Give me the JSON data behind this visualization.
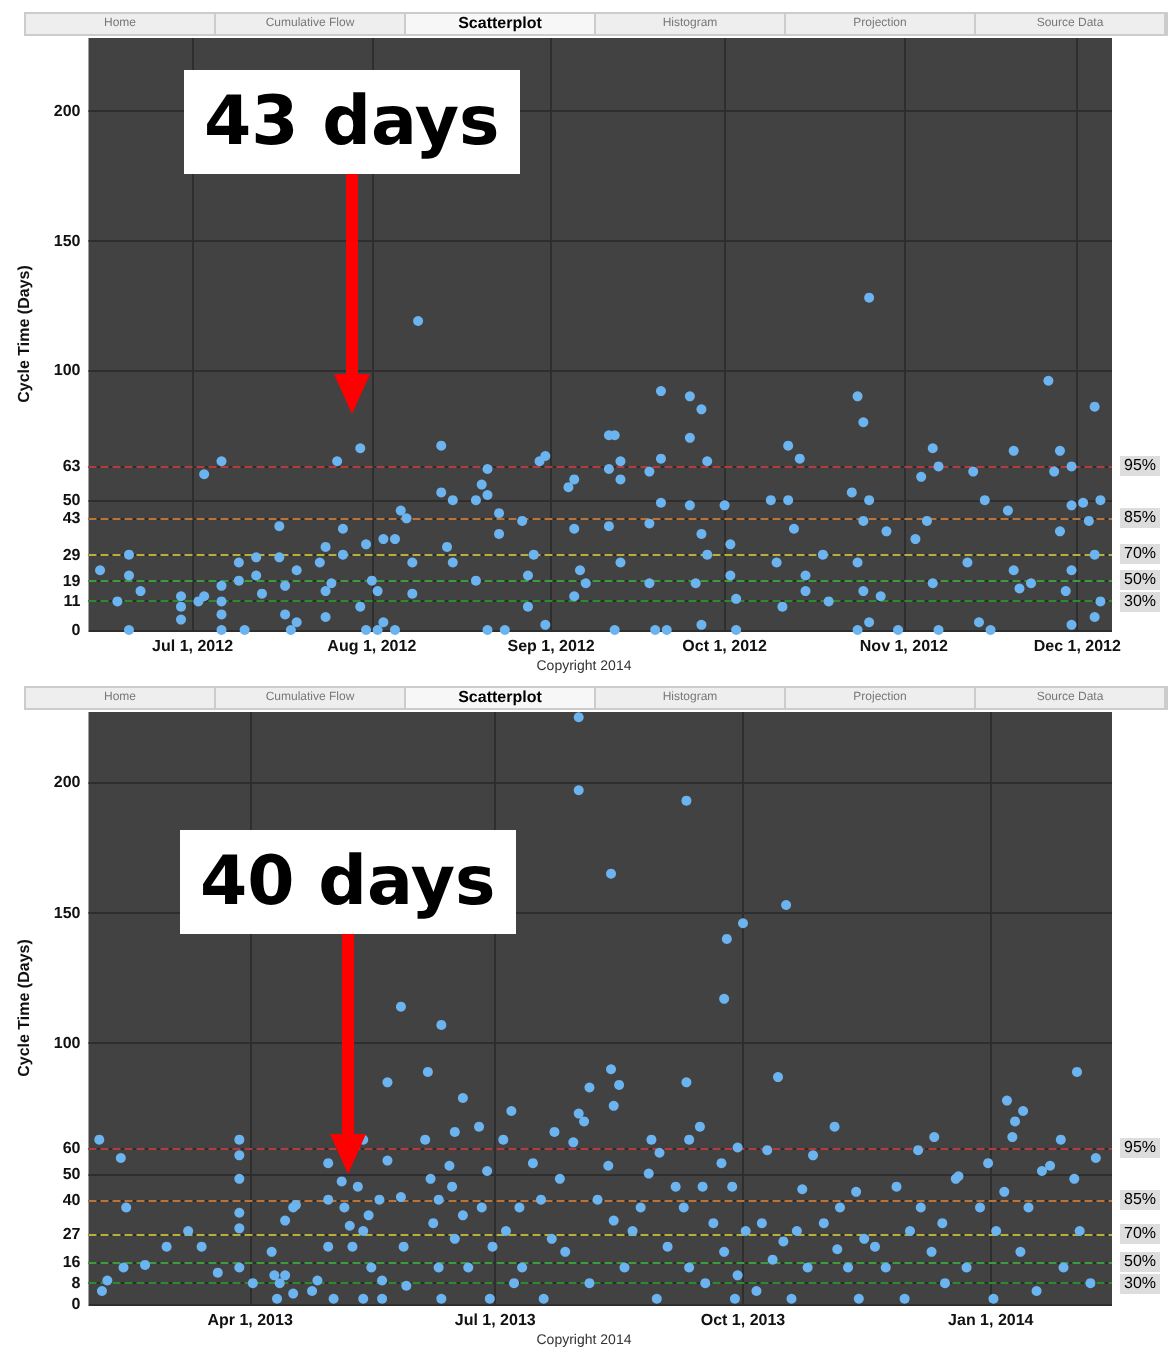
{
  "chart_data": [
    {
      "type": "scatter",
      "title": "Scatterplot",
      "ylabel": "Cycle Time (Days)",
      "annotations": [
        "Home",
        "Cumulative Flow",
        "Histogram",
        "Projection",
        "Source Data",
        "Copyright 2014",
        "43 days",
        "95%",
        "85%",
        "70%",
        "50%",
        "30%"
      ],
      "xlim": [
        "2012-06-13",
        "2012-12-07"
      ],
      "xticks": [
        {
          "value": "2012-07-01",
          "label": "Jul 1, 2012"
        },
        {
          "value": "2012-08-01",
          "label": "Aug 1, 2012"
        },
        {
          "value": "2012-09-01",
          "label": "Sep 1, 2012"
        },
        {
          "value": "2012-10-01",
          "label": "Oct 1, 2012"
        },
        {
          "value": "2012-11-01",
          "label": "Nov 1, 2012"
        },
        {
          "value": "2012-12-01",
          "label": "Dec 1, 2012"
        }
      ],
      "ylim": [
        0,
        228
      ],
      "yticks": [
        0,
        11,
        19,
        29,
        43,
        50,
        63,
        100,
        150,
        200
      ],
      "grid": true,
      "marker": "circle",
      "ref_lines": [
        {
          "axis": "y",
          "value": 63,
          "color": "#b23b3b",
          "line_style": "dashed"
        },
        {
          "axis": "y",
          "value": 43,
          "color": "#b8743a",
          "line_style": "dashed"
        },
        {
          "axis": "y",
          "value": 29,
          "color": "#b8b03a",
          "line_style": "dashed"
        },
        {
          "axis": "y",
          "value": 19,
          "color": "#3d9a3d",
          "line_style": "dashed"
        },
        {
          "axis": "y",
          "value": 11,
          "color": "#2f8a2f",
          "line_style": "dashed"
        }
      ],
      "series": [
        {
          "color": "#6cb4f0",
          "x": [
            "2012-06-15",
            "2012-06-18",
            "2012-06-20",
            "2012-06-20",
            "2012-06-20",
            "2012-06-22",
            "2012-06-29",
            "2012-06-29",
            "2012-06-29",
            "2012-07-02",
            "2012-07-03",
            "2012-07-03",
            "2012-07-06",
            "2012-07-06",
            "2012-07-06",
            "2012-07-06",
            "2012-07-06",
            "2012-07-09",
            "2012-07-09",
            "2012-07-10",
            "2012-07-12",
            "2012-07-12",
            "2012-07-13",
            "2012-07-16",
            "2012-07-16",
            "2012-07-17",
            "2012-07-17",
            "2012-07-18",
            "2012-07-19",
            "2012-07-19",
            "2012-07-23",
            "2012-07-24",
            "2012-07-24",
            "2012-07-24",
            "2012-07-25",
            "2012-07-26",
            "2012-07-27",
            "2012-07-27",
            "2012-07-30",
            "2012-07-30",
            "2012-07-31",
            "2012-07-31",
            "2012-08-01",
            "2012-08-02",
            "2012-08-02",
            "2012-08-03",
            "2012-08-03",
            "2012-08-05",
            "2012-08-05",
            "2012-08-06",
            "2012-08-07",
            "2012-08-08",
            "2012-08-08",
            "2012-08-09",
            "2012-08-13",
            "2012-08-13",
            "2012-08-14",
            "2012-08-15",
            "2012-08-15",
            "2012-08-19",
            "2012-08-19",
            "2012-08-20",
            "2012-08-21",
            "2012-08-21",
            "2012-08-21",
            "2012-08-23",
            "2012-08-23",
            "2012-08-24",
            "2012-08-27",
            "2012-08-28",
            "2012-08-28",
            "2012-08-29",
            "2012-08-30",
            "2012-08-31",
            "2012-08-31",
            "2012-09-04",
            "2012-09-05",
            "2012-09-05",
            "2012-09-05",
            "2012-09-06",
            "2012-09-07",
            "2012-09-11",
            "2012-09-12",
            "2012-09-11",
            "2012-09-13",
            "2012-09-13",
            "2012-09-11",
            "2012-09-13",
            "2012-09-12",
            "2012-09-18",
            "2012-09-18",
            "2012-09-18",
            "2012-09-19",
            "2012-09-20",
            "2012-09-20",
            "2012-09-20",
            "2012-09-21",
            "2012-09-25",
            "2012-09-25",
            "2012-09-27",
            "2012-09-28",
            "2012-09-25",
            "2012-09-26",
            "2012-09-27",
            "2012-09-27",
            "2012-09-28",
            "2012-10-01",
            "2012-10-02",
            "2012-10-02",
            "2012-10-03",
            "2012-10-03",
            "2012-10-09",
            "2012-10-10",
            "2012-10-11",
            "2012-10-12",
            "2012-10-12",
            "2012-10-13",
            "2012-10-14",
            "2012-10-15",
            "2012-10-15",
            "2012-10-18",
            "2012-10-19",
            "2012-10-23",
            "2012-10-24",
            "2012-10-24",
            "2012-10-24",
            "2012-10-25",
            "2012-10-25",
            "2012-10-26",
            "2012-10-25",
            "2012-10-26",
            "2012-10-26",
            "2012-10-28",
            "2012-10-29",
            "2012-10-31",
            "2012-11-03",
            "2012-11-04",
            "2012-11-05",
            "2012-11-06",
            "2012-11-07",
            "2012-11-06",
            "2012-11-07",
            "2012-11-12",
            "2012-11-13",
            "2012-11-14",
            "2012-11-15",
            "2012-11-16",
            "2012-11-19",
            "2012-11-20",
            "2012-11-20",
            "2012-11-21",
            "2012-11-23",
            "2012-11-26",
            "2012-11-27",
            "2012-11-28",
            "2012-11-28",
            "2012-11-30",
            "2012-11-30",
            "2012-11-30",
            "2012-11-29",
            "2012-11-30",
            "2012-12-02",
            "2012-12-03",
            "2012-12-04",
            "2012-12-05",
            "2012-12-04",
            "2012-12-04",
            "2012-12-05"
          ],
          "values": [
            23,
            11,
            29,
            21,
            0,
            15,
            13,
            9,
            4,
            11,
            60,
            13,
            65,
            17,
            11,
            6,
            0,
            19,
            26,
            0,
            28,
            21,
            14,
            40,
            28,
            17,
            6,
            0,
            3,
            23,
            26,
            32,
            15,
            5,
            18,
            65,
            29,
            39,
            9,
            70,
            33,
            0,
            19,
            15,
            0,
            35,
            3,
            35,
            0,
            46,
            43,
            26,
            14,
            119,
            71,
            53,
            32,
            26,
            50,
            50,
            19,
            56,
            62,
            52,
            0,
            37,
            45,
            0,
            42,
            21,
            9,
            29,
            65,
            67,
            2,
            55,
            58,
            39,
            13,
            23,
            18,
            75,
            75,
            62,
            65,
            58,
            40,
            26,
            0,
            61,
            41,
            18,
            0,
            92,
            66,
            49,
            0,
            90,
            74,
            85,
            65,
            48,
            18,
            37,
            2,
            29,
            48,
            21,
            33,
            12,
            0,
            50,
            26,
            9,
            71,
            50,
            39,
            66,
            21,
            15,
            29,
            11,
            53,
            26,
            0,
            90,
            80,
            42,
            50,
            15,
            3,
            128,
            13,
            38,
            0,
            35,
            59,
            42,
            70,
            63,
            18,
            0,
            26,
            61,
            3,
            50,
            0,
            46,
            69,
            23,
            16,
            18,
            96,
            61,
            69,
            38,
            63,
            48,
            23,
            15,
            2,
            49,
            42,
            86,
            50,
            29,
            5,
            11
          ]
        }
      ]
    },
    {
      "type": "scatter",
      "title": "Scatterplot",
      "ylabel": "Cycle Time (Days)",
      "annotations": [
        "Home",
        "Cumulative Flow",
        "Histogram",
        "Projection",
        "Source Data",
        "Copyright 2014",
        "40 days",
        "95%",
        "85%",
        "70%",
        "50%",
        "30%"
      ],
      "xlim": [
        "2013-01-31",
        "2014-02-15"
      ],
      "xticks": [
        {
          "value": "2013-04-01",
          "label": "Apr 1, 2013"
        },
        {
          "value": "2013-07-01",
          "label": "Jul 1, 2013"
        },
        {
          "value": "2013-10-01",
          "label": "Oct 1, 2013"
        },
        {
          "value": "2014-01-01",
          "label": "Jan 1, 2014"
        }
      ],
      "ylim": [
        0,
        227
      ],
      "yticks": [
        0,
        8,
        16,
        27,
        40,
        50,
        60,
        100,
        150,
        200
      ],
      "grid": true,
      "marker": "circle",
      "ref_lines": [
        {
          "axis": "y",
          "value": 60,
          "color": "#b23b3b",
          "line_style": "dashed"
        },
        {
          "axis": "y",
          "value": 40,
          "color": "#b8743a",
          "line_style": "dashed"
        },
        {
          "axis": "y",
          "value": 27,
          "color": "#b8b03a",
          "line_style": "dashed"
        },
        {
          "axis": "y",
          "value": 16,
          "color": "#3d9a3d",
          "line_style": "dashed"
        },
        {
          "axis": "y",
          "value": 8,
          "color": "#2f8a2f",
          "line_style": "dashed"
        }
      ],
      "series": [
        {
          "color": "#6cb4f0",
          "x": [
            "2013-02-04",
            "2013-02-05",
            "2013-02-07",
            "2013-02-12",
            "2013-02-13",
            "2013-02-14",
            "2013-02-21",
            "2013-03-01",
            "2013-03-09",
            "2013-03-14",
            "2013-03-20",
            "2013-03-28",
            "2013-03-28",
            "2013-03-28",
            "2013-03-28",
            "2013-03-28",
            "2013-03-28",
            "2013-04-02",
            "2013-04-09",
            "2013-04-10",
            "2013-04-11",
            "2013-04-12",
            "2013-04-14",
            "2013-04-17",
            "2013-04-18",
            "2013-04-14",
            "2013-04-17",
            "2013-04-24",
            "2013-04-26",
            "2013-04-30",
            "2013-04-30",
            "2013-04-30",
            "2013-05-02",
            "2013-05-05",
            "2013-05-06",
            "2013-05-08",
            "2013-05-09",
            "2013-05-11",
            "2013-05-13",
            "2013-05-13",
            "2013-05-13",
            "2013-05-15",
            "2013-05-16",
            "2013-05-19",
            "2013-05-20",
            "2013-05-20",
            "2013-05-22",
            "2013-05-22",
            "2013-05-27",
            "2013-05-27",
            "2013-05-28",
            "2013-05-29",
            "2013-06-05",
            "2013-06-06",
            "2013-06-07",
            "2013-06-08",
            "2013-06-10",
            "2013-06-11",
            "2013-06-10",
            "2013-06-11",
            "2013-06-14",
            "2013-06-15",
            "2013-06-16",
            "2013-06-19",
            "2013-06-16",
            "2013-06-19",
            "2013-06-21",
            "2013-06-25",
            "2013-06-26",
            "2013-06-29",
            "2013-06-28",
            "2013-06-30",
            "2013-07-04",
            "2013-07-05",
            "2013-07-07",
            "2013-07-08",
            "2013-07-10",
            "2013-07-11",
            "2013-07-15",
            "2013-07-18",
            "2013-07-19",
            "2013-07-22",
            "2013-07-23",
            "2013-07-25",
            "2013-07-27",
            "2013-07-30",
            "2013-08-01",
            "2013-08-01",
            "2013-08-01",
            "2013-08-03",
            "2013-08-05",
            "2013-08-05",
            "2013-08-08",
            "2013-08-12",
            "2013-08-13",
            "2013-08-13",
            "2013-08-14",
            "2013-08-16",
            "2013-08-14",
            "2013-08-18",
            "2013-08-21",
            "2013-08-24",
            "2013-08-27",
            "2013-08-28",
            "2013-08-30",
            "2013-08-31",
            "2013-09-03",
            "2013-09-06",
            "2013-09-09",
            "2013-09-10",
            "2013-09-10",
            "2013-09-11",
            "2013-09-11",
            "2013-09-15",
            "2013-09-16",
            "2013-09-17",
            "2013-09-20",
            "2013-09-23",
            "2013-09-24",
            "2013-09-24",
            "2013-09-25",
            "2013-09-27",
            "2013-09-28",
            "2013-09-29",
            "2013-09-29",
            "2013-10-01",
            "2013-10-02",
            "2013-10-06",
            "2013-10-08",
            "2013-10-10",
            "2013-10-12",
            "2013-10-14",
            "2013-10-16",
            "2013-10-17",
            "2013-10-19",
            "2013-10-21",
            "2013-10-23",
            "2013-10-25",
            "2013-10-27",
            "2013-10-31",
            "2013-11-04",
            "2013-11-05",
            "2013-11-06",
            "2013-11-09",
            "2013-11-12",
            "2013-11-13",
            "2013-11-15",
            "2013-11-19",
            "2013-11-23",
            "2013-11-27",
            "2013-11-30",
            "2013-12-02",
            "2013-12-05",
            "2013-12-06",
            "2013-12-11",
            "2013-12-10",
            "2013-12-14",
            "2013-12-15",
            "2013-12-19",
            "2013-12-20",
            "2013-12-23",
            "2013-12-28",
            "2013-12-31",
            "2014-01-02",
            "2014-01-03",
            "2014-01-07",
            "2014-01-06",
            "2014-01-09",
            "2014-01-10",
            "2014-01-12",
            "2014-01-13",
            "2014-01-15",
            "2014-01-18",
            "2014-01-20",
            "2014-01-23",
            "2014-01-27",
            "2014-01-28",
            "2014-02-01",
            "2014-02-02",
            "2014-02-03",
            "2014-02-07",
            "2014-02-09"
          ],
          "values": [
            63,
            5,
            9,
            56,
            14,
            37,
            15,
            22,
            28,
            22,
            12,
            63,
            57,
            48,
            35,
            29,
            14,
            8,
            20,
            11,
            2,
            8,
            32,
            37,
            38,
            11,
            4,
            5,
            9,
            22,
            40,
            54,
            2,
            47,
            37,
            30,
            22,
            45,
            63,
            28,
            2,
            34,
            14,
            40,
            9,
            2,
            85,
            55,
            41,
            114,
            22,
            7,
            63,
            89,
            48,
            31,
            40,
            107,
            14,
            2,
            53,
            45,
            66,
            79,
            25,
            34,
            14,
            68,
            37,
            2,
            51,
            22,
            63,
            28,
            74,
            8,
            37,
            14,
            54,
            40,
            2,
            25,
            66,
            48,
            20,
            62,
            73,
            225,
            197,
            70,
            83,
            8,
            40,
            53,
            90,
            165,
            32,
            84,
            76,
            14,
            28,
            37,
            50,
            63,
            2,
            58,
            22,
            45,
            37,
            85,
            193,
            63,
            14,
            68,
            45,
            8,
            31,
            54,
            20,
            117,
            140,
            45,
            2,
            60,
            11,
            146,
            28,
            5,
            31,
            59,
            17,
            87,
            24,
            153,
            2,
            28,
            44,
            14,
            57,
            31,
            68,
            21,
            37,
            14,
            43,
            2,
            25,
            22,
            14,
            45,
            2,
            28,
            59,
            37,
            64,
            20,
            31,
            8,
            48,
            49,
            14,
            37,
            54,
            2,
            28,
            78,
            43,
            64,
            70,
            20,
            74,
            37,
            5,
            51,
            53,
            63,
            14,
            48,
            89,
            28,
            8,
            56
          ]
        }
      ]
    }
  ]
}
